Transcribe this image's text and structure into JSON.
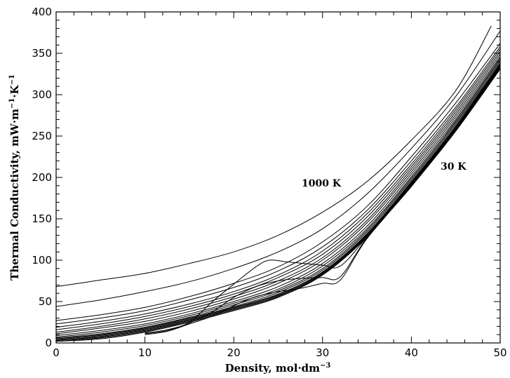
{
  "chart_data": {
    "type": "line",
    "xlabel": "Density,  mol·dm",
    "xlabel_sup": "−3",
    "ylabel": "Thermal  Conductivity,  mW·m",
    "ylabel_sup1": "−1",
    "ylabel_mid": "·K",
    "ylabel_sup2": "−1",
    "xlim": [
      0,
      50
    ],
    "ylim": [
      0,
      400
    ],
    "x_ticks": [
      0,
      10,
      20,
      30,
      40,
      50
    ],
    "y_ticks": [
      0,
      50,
      100,
      150,
      200,
      250,
      300,
      350,
      400
    ],
    "x_tick_labels": [
      "0",
      "10",
      "20",
      "30",
      "40",
      "50"
    ],
    "y_tick_labels": [
      "0",
      "50",
      "100",
      "150",
      "200",
      "250",
      "300",
      "350",
      "400"
    ],
    "grid": false,
    "legend": "none",
    "annotations": [
      {
        "text": "1000  K",
        "x": 29.5,
        "y": 190
      },
      {
        "text": "30  K",
        "x": 45.5,
        "y": 211
      }
    ],
    "series": [
      {
        "values": [
          [
            0,
            68
          ],
          [
            5,
            76
          ],
          [
            10,
            84
          ],
          [
            15,
            96
          ],
          [
            20,
            110
          ],
          [
            25,
            130
          ],
          [
            30,
            158
          ],
          [
            35,
            195
          ],
          [
            40,
            245
          ],
          [
            45,
            305
          ],
          [
            49,
            383
          ]
        ]
      },
      {
        "values": [
          [
            0,
            44
          ],
          [
            5,
            52
          ],
          [
            10,
            62
          ],
          [
            15,
            74
          ],
          [
            20,
            90
          ],
          [
            25,
            110
          ],
          [
            30,
            138
          ],
          [
            35,
            180
          ],
          [
            40,
            235
          ],
          [
            45,
            298
          ],
          [
            50,
            377
          ]
        ]
      },
      {
        "values": [
          [
            0,
            27
          ],
          [
            5,
            34
          ],
          [
            10,
            43
          ],
          [
            15,
            56
          ],
          [
            20,
            72
          ],
          [
            25,
            92
          ],
          [
            30,
            122
          ],
          [
            35,
            165
          ],
          [
            40,
            225
          ],
          [
            45,
            290
          ],
          [
            50,
            362
          ]
        ]
      },
      {
        "values": [
          [
            0,
            23
          ],
          [
            5,
            30
          ],
          [
            10,
            39
          ],
          [
            15,
            52
          ],
          [
            20,
            67
          ],
          [
            25,
            87
          ],
          [
            30,
            116
          ],
          [
            35,
            160
          ],
          [
            40,
            220
          ],
          [
            45,
            285
          ],
          [
            50,
            358
          ]
        ]
      },
      {
        "values": [
          [
            0,
            19
          ],
          [
            5,
            26
          ],
          [
            10,
            35
          ],
          [
            15,
            47
          ],
          [
            20,
            62
          ],
          [
            25,
            82
          ],
          [
            30,
            111
          ],
          [
            35,
            156
          ],
          [
            40,
            216
          ],
          [
            45,
            282
          ],
          [
            50,
            355
          ]
        ]
      },
      {
        "values": [
          [
            0,
            16
          ],
          [
            5,
            23
          ],
          [
            10,
            32
          ],
          [
            15,
            44
          ],
          [
            20,
            59
          ],
          [
            25,
            79
          ],
          [
            30,
            107
          ],
          [
            35,
            152
          ],
          [
            40,
            213
          ],
          [
            45,
            279
          ],
          [
            50,
            352
          ]
        ]
      },
      {
        "values": [
          [
            0,
            13
          ],
          [
            5,
            20
          ],
          [
            10,
            29
          ],
          [
            15,
            41
          ],
          [
            20,
            56
          ],
          [
            25,
            75
          ],
          [
            30,
            103
          ],
          [
            35,
            148
          ],
          [
            40,
            210
          ],
          [
            45,
            276
          ],
          [
            50,
            349
          ]
        ]
      },
      {
        "values": [
          [
            0,
            11
          ],
          [
            5,
            18
          ],
          [
            10,
            26
          ],
          [
            15,
            38
          ],
          [
            20,
            53
          ],
          [
            25,
            72
          ],
          [
            30,
            100
          ],
          [
            35,
            145
          ],
          [
            40,
            207
          ],
          [
            45,
            273
          ],
          [
            50,
            346
          ]
        ]
      },
      {
        "values": [
          [
            0,
            9
          ],
          [
            5,
            15
          ],
          [
            10,
            23
          ],
          [
            15,
            35
          ],
          [
            20,
            50
          ],
          [
            25,
            68
          ],
          [
            30,
            96
          ],
          [
            35,
            141
          ],
          [
            40,
            204
          ],
          [
            45,
            270
          ],
          [
            50,
            344
          ]
        ]
      },
      {
        "values": [
          [
            0,
            7
          ],
          [
            5,
            13
          ],
          [
            10,
            21
          ],
          [
            15,
            33
          ],
          [
            20,
            48
          ],
          [
            25,
            65
          ],
          [
            30,
            93
          ],
          [
            35,
            138
          ],
          [
            40,
            201
          ],
          [
            45,
            268
          ],
          [
            50,
            342
          ]
        ]
      },
      {
        "values": [
          [
            0,
            6
          ],
          [
            5,
            11
          ],
          [
            10,
            19
          ],
          [
            15,
            31
          ],
          [
            20,
            46
          ],
          [
            25,
            63
          ],
          [
            30,
            90
          ],
          [
            35,
            136
          ],
          [
            40,
            199
          ],
          [
            45,
            266
          ],
          [
            50,
            340
          ]
        ]
      },
      {
        "values": [
          [
            0,
            5
          ],
          [
            5,
            10
          ],
          [
            10,
            18
          ],
          [
            15,
            30
          ],
          [
            20,
            44
          ],
          [
            25,
            61
          ],
          [
            30,
            88
          ],
          [
            35,
            134
          ],
          [
            40,
            197
          ],
          [
            45,
            264
          ],
          [
            50,
            338
          ]
        ]
      },
      {
        "values": [
          [
            0,
            4
          ],
          [
            5,
            9
          ],
          [
            10,
            17
          ],
          [
            15,
            29
          ],
          [
            20,
            43
          ],
          [
            25,
            59
          ],
          [
            30,
            86
          ],
          [
            35,
            132
          ],
          [
            40,
            195
          ],
          [
            45,
            262
          ],
          [
            50,
            337
          ]
        ]
      },
      {
        "values": [
          [
            0,
            3
          ],
          [
            5,
            8
          ],
          [
            10,
            16
          ],
          [
            15,
            28
          ],
          [
            20,
            42
          ],
          [
            25,
            58
          ],
          [
            30,
            85
          ],
          [
            35,
            131
          ],
          [
            40,
            194
          ],
          [
            45,
            261
          ],
          [
            50,
            336
          ]
        ]
      },
      {
        "values": [
          [
            0,
            3
          ],
          [
            5,
            7
          ],
          [
            10,
            15
          ],
          [
            15,
            27
          ],
          [
            20,
            41
          ],
          [
            25,
            57
          ],
          [
            30,
            84
          ],
          [
            35,
            130
          ],
          [
            40,
            193
          ],
          [
            45,
            260
          ],
          [
            50,
            335
          ]
        ]
      },
      {
        "values": [
          [
            0,
            2
          ],
          [
            5,
            6
          ],
          [
            10,
            14
          ],
          [
            15,
            26
          ],
          [
            20,
            40
          ],
          [
            25,
            56
          ],
          [
            30,
            83
          ],
          [
            35,
            129
          ],
          [
            40,
            192
          ],
          [
            45,
            259
          ],
          [
            50,
            334
          ]
        ]
      },
      {
        "values": [
          [
            0,
            2
          ],
          [
            5,
            5
          ],
          [
            10,
            13
          ],
          [
            15,
            25
          ],
          [
            20,
            39
          ],
          [
            25,
            55
          ],
          [
            30,
            82
          ],
          [
            35,
            128
          ],
          [
            40,
            191
          ],
          [
            45,
            258
          ],
          [
            50,
            333
          ]
        ]
      },
      {
        "values": [
          [
            10,
            12
          ],
          [
            12.5,
            16
          ],
          [
            15,
            25
          ],
          [
            17.5,
            49
          ],
          [
            20,
            71
          ],
          [
            22.5,
            92
          ],
          [
            24,
            100
          ],
          [
            26,
            98
          ],
          [
            30,
            94
          ],
          [
            32,
            93
          ],
          [
            35,
            128
          ],
          [
            40,
            191
          ],
          [
            45,
            258
          ],
          [
            50,
            333
          ]
        ]
      },
      {
        "values": [
          [
            10,
            11
          ],
          [
            12.5,
            15
          ],
          [
            15,
            24
          ],
          [
            17.5,
            37
          ],
          [
            20,
            55
          ],
          [
            22.5,
            68
          ],
          [
            25,
            75
          ],
          [
            27.5,
            78
          ],
          [
            30,
            79
          ],
          [
            32,
            80
          ],
          [
            35,
            127
          ],
          [
            40,
            190
          ],
          [
            45,
            257
          ],
          [
            50,
            332
          ]
        ]
      },
      {
        "values": [
          [
            10,
            10
          ],
          [
            12.5,
            14
          ],
          [
            15,
            23
          ],
          [
            17.5,
            32
          ],
          [
            20,
            45
          ],
          [
            22.5,
            56
          ],
          [
            25,
            62
          ],
          [
            27.5,
            66
          ],
          [
            30,
            72
          ],
          [
            32,
            76
          ],
          [
            35,
            126
          ],
          [
            40,
            189
          ],
          [
            45,
            256
          ],
          [
            50,
            331
          ]
        ]
      }
    ]
  }
}
